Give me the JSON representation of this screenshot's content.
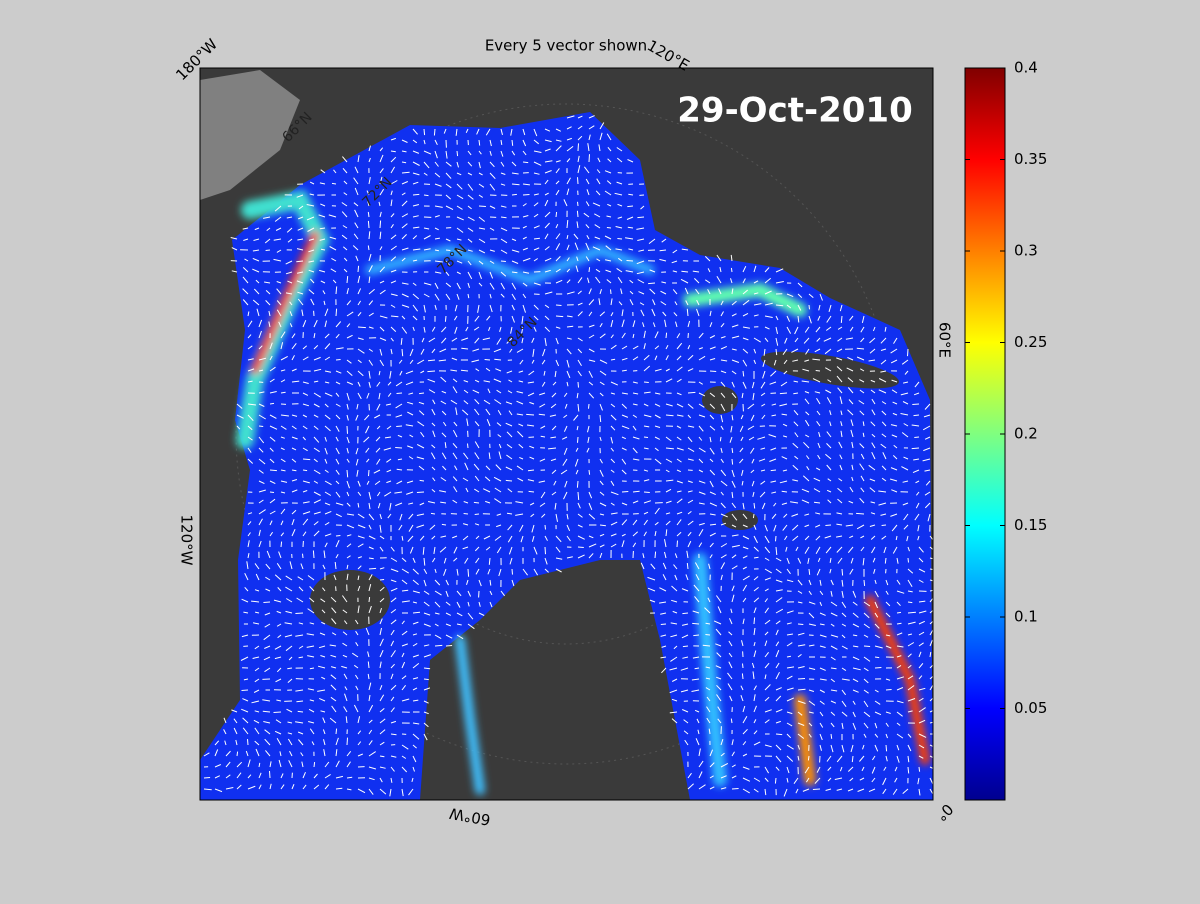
{
  "title": "Every 5 vector shown",
  "date_label": "29-Oct-2010",
  "lon_labels": [
    "180°W",
    "120°E",
    "60°E",
    "0°",
    "60°W",
    "120°W"
  ],
  "lat_labels": [
    "66°N",
    "72°N",
    "78°N",
    "84°N"
  ],
  "colorbar": {
    "lim": [
      0,
      0.4
    ],
    "ticks": [
      0.05,
      0.1,
      0.15,
      0.2,
      0.25,
      0.3,
      0.35,
      0.4
    ],
    "colormap": "jet"
  }
}
